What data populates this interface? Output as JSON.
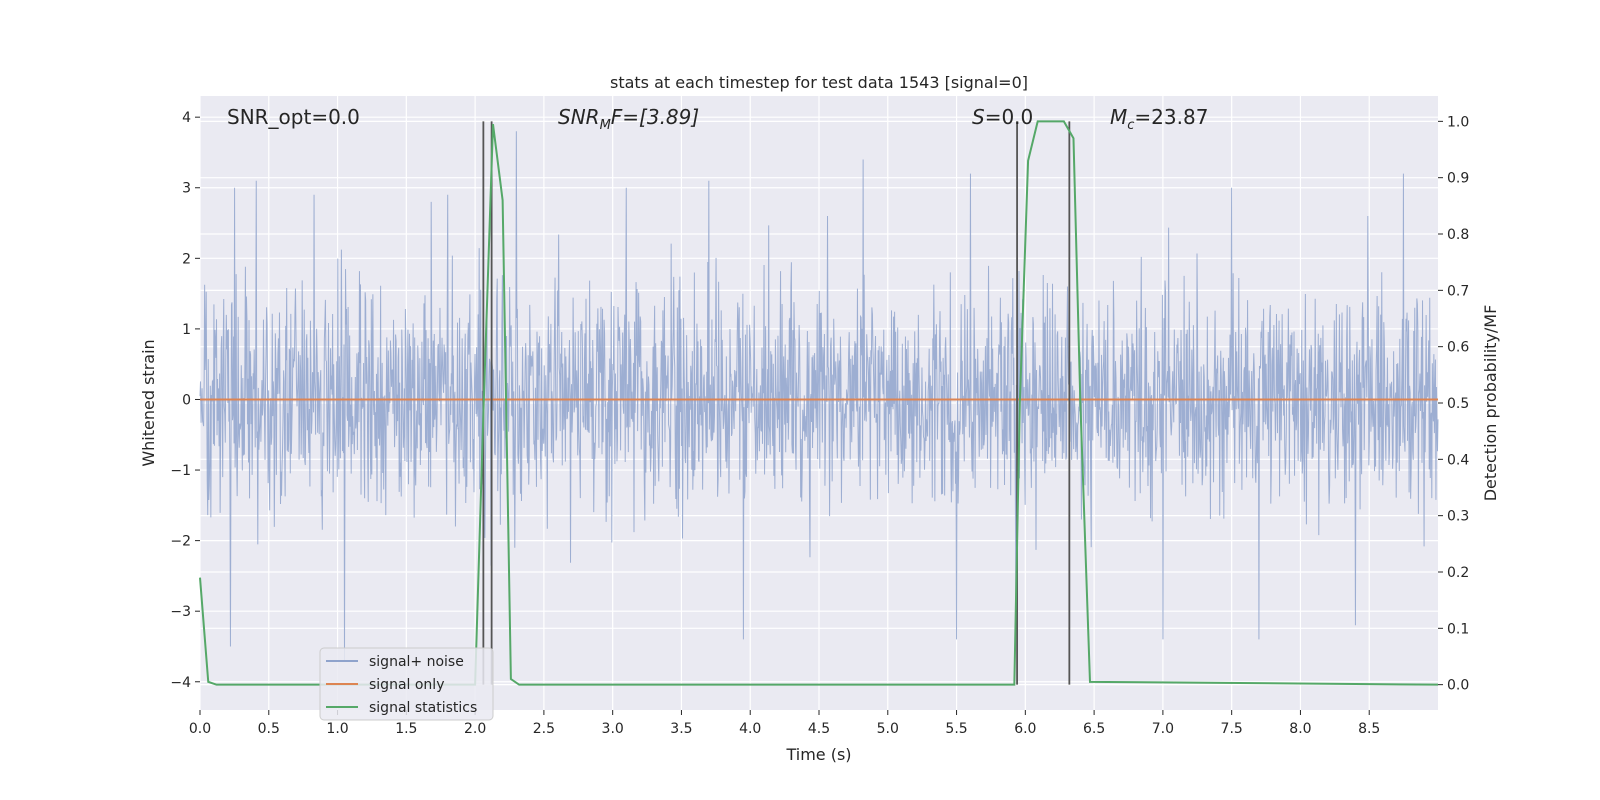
{
  "chart_data": {
    "type": "line",
    "title": "stats at each timestep for test data 1543 [signal=0]",
    "xlabel": "Time (s)",
    "ylabel_left": "Whitened strain",
    "ylabel_right": "Detection probability/MF",
    "xlim": [
      0.0,
      9.0
    ],
    "ylim_left": [
      -4.4,
      4.3
    ],
    "ylim_right": [
      -0.045,
      1.045
    ],
    "grid": true,
    "legend_position": "lower-left",
    "x_ticks": [
      "0.0",
      "0.5",
      "1.0",
      "1.5",
      "2.0",
      "2.5",
      "3.0",
      "3.5",
      "4.0",
      "4.5",
      "5.0",
      "5.5",
      "6.0",
      "6.5",
      "7.0",
      "7.5",
      "8.0",
      "8.5"
    ],
    "y_left_ticks": [
      "−4",
      "−3",
      "−2",
      "−1",
      "0",
      "1",
      "2",
      "3",
      "4"
    ],
    "y_right_ticks": [
      "0.0",
      "0.1",
      "0.2",
      "0.3",
      "0.4",
      "0.5",
      "0.6",
      "0.7",
      "0.8",
      "0.9",
      "1.0"
    ],
    "annotations": {
      "snr_opt": "SNR_opt=0.0",
      "snr_mf_base": "SNR",
      "snr_mf_sub": "M",
      "snr_mf_rest": "F=[3.89]",
      "s_base": "S",
      "s_rest": "=0.0",
      "mc_base": "M",
      "mc_sub": "c",
      "mc_rest": "=23.87"
    },
    "series": [
      {
        "name": "signal+ noise",
        "axis": "left",
        "color": "#8fa3cc",
        "noise_sigma": 0.8,
        "peaks": [
          {
            "x": 0.25,
            "y": 3.0
          },
          {
            "x": 0.41,
            "y": 3.1
          },
          {
            "x": 0.83,
            "y": 2.9
          },
          {
            "x": 1.68,
            "y": 2.8
          },
          {
            "x": 1.8,
            "y": 2.9
          },
          {
            "x": 2.3,
            "y": 3.8
          },
          {
            "x": 3.1,
            "y": 3.0
          },
          {
            "x": 3.7,
            "y": 3.1
          },
          {
            "x": 4.82,
            "y": 3.4
          },
          {
            "x": 5.6,
            "y": 3.2
          },
          {
            "x": 7.5,
            "y": 3.0
          },
          {
            "x": 8.75,
            "y": 3.2
          },
          {
            "x": 0.22,
            "y": -3.5
          },
          {
            "x": 1.05,
            "y": -3.7
          },
          {
            "x": 3.95,
            "y": -3.4
          },
          {
            "x": 5.5,
            "y": -3.4
          },
          {
            "x": 7.0,
            "y": -3.4
          },
          {
            "x": 7.7,
            "y": -3.4
          },
          {
            "x": 8.4,
            "y": -3.2
          },
          {
            "x": 5.93,
            "y": -3.1
          }
        ]
      },
      {
        "name": "signal only",
        "axis": "left",
        "color": "#dd8452",
        "x": [
          0.0,
          9.0
        ],
        "y": [
          0.0,
          0.0
        ]
      },
      {
        "name": "signal statistics",
        "axis": "right",
        "color": "#55a868",
        "x": [
          0.0,
          0.06,
          0.12,
          0.2,
          2.0,
          2.06,
          2.13,
          2.2,
          2.26,
          2.32,
          2.4,
          5.92,
          5.96,
          6.02,
          6.09,
          6.15,
          6.22,
          6.28,
          6.35,
          6.4,
          6.47,
          9.0
        ],
        "y": [
          0.19,
          0.005,
          0.0,
          0.0,
          0.0,
          0.48,
          0.995,
          0.86,
          0.01,
          0.0,
          0.0,
          0.0,
          0.5,
          0.93,
          1.0,
          1.0,
          1.0,
          1.0,
          0.97,
          0.5,
          0.005,
          0.0
        ]
      }
    ],
    "vertical_markers": [
      {
        "x": 2.06,
        "ymin": 0.0,
        "ymax": 1.0
      },
      {
        "x": 2.12,
        "ymin": 0.0,
        "ymax": 1.0
      },
      {
        "x": 5.94,
        "ymin": 0.0,
        "ymax": 1.0
      },
      {
        "x": 6.32,
        "ymin": 0.0,
        "ymax": 1.0
      }
    ],
    "colors": {
      "plot_background": "#eaeaf2",
      "grid": "#ffffff",
      "marker_line": "#555555"
    }
  }
}
